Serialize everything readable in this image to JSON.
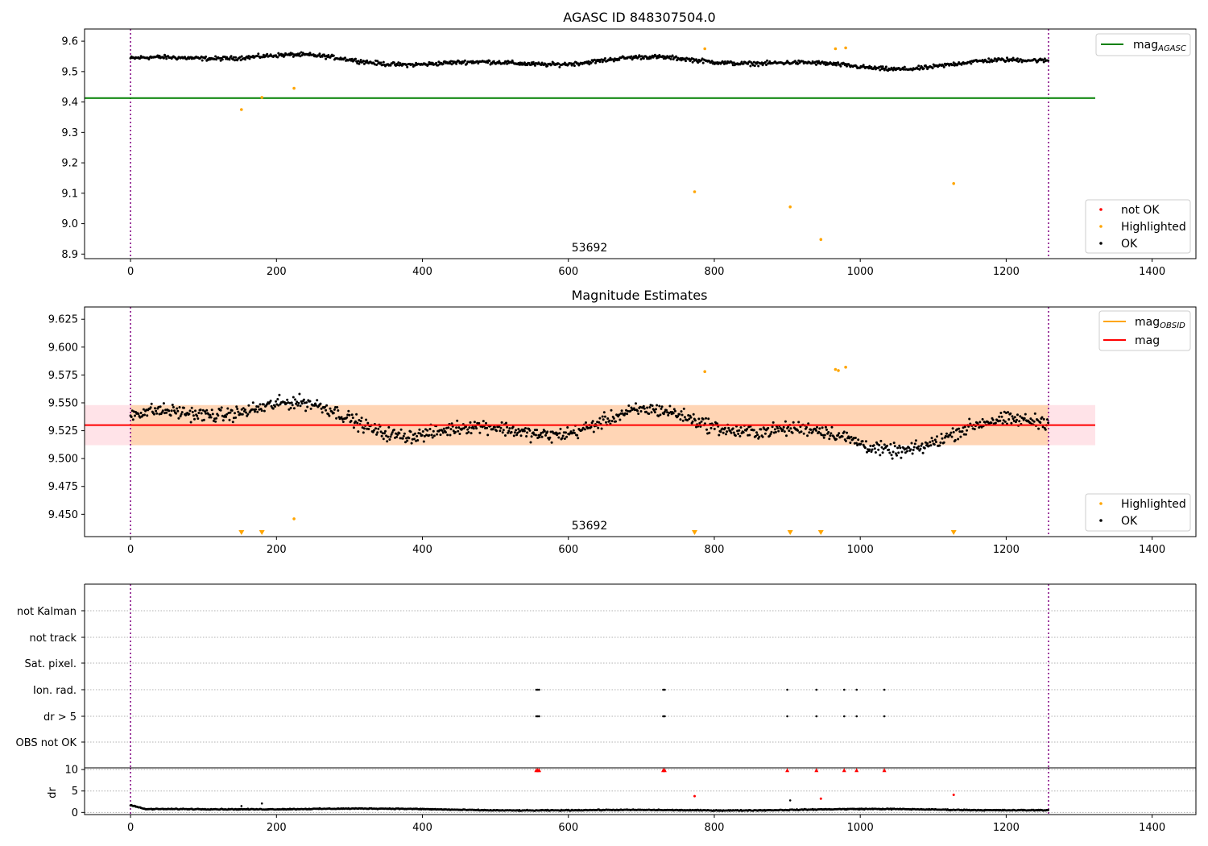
{
  "chart_data": [
    {
      "type": "scatter",
      "title": "AGASC ID 848307504.0",
      "xlim": [
        -63,
        1460
      ],
      "ylim": [
        8.885,
        9.64
      ],
      "x_ticks": [
        0,
        200,
        400,
        600,
        800,
        1000,
        1200,
        1400
      ],
      "y_ticks": [
        8.9,
        9.0,
        9.1,
        9.2,
        9.3,
        9.4,
        9.5,
        9.6
      ],
      "y_tick_labels": [
        "8.9",
        "9.0",
        "9.1",
        "9.2",
        "9.3",
        "9.4",
        "9.5",
        "9.6"
      ],
      "obs_boundaries": [
        0,
        1258
      ],
      "obs_label": {
        "text": "53692",
        "x": 629
      },
      "mag_agasc": {
        "value": 9.413,
        "x_range": [
          -63,
          1322
        ],
        "color": "#008000"
      },
      "ok_series": {
        "x_range": [
          0,
          1258
        ],
        "mean": 9.533,
        "amplitude": 0.025,
        "color": "#000000"
      },
      "highlighted": {
        "color": "#ffa500",
        "x": [
          152,
          180,
          224,
          773,
          787,
          904,
          946,
          966,
          980,
          1128
        ],
        "y": [
          9.375,
          9.415,
          9.445,
          9.105,
          9.575,
          9.055,
          8.948,
          9.575,
          9.578,
          9.132
        ]
      },
      "legend_upper": [
        {
          "label": "mag",
          "sub": "AGASC",
          "color": "#008000",
          "kind": "line"
        }
      ],
      "legend_lower": [
        {
          "label": "not OK",
          "color": "#ff0000",
          "kind": "marker"
        },
        {
          "label": "Highlighted",
          "color": "#ffa500",
          "kind": "marker"
        },
        {
          "label": "OK",
          "color": "#000000",
          "kind": "marker"
        }
      ]
    },
    {
      "type": "scatter",
      "title": "Magnitude Estimates",
      "xlim": [
        -63,
        1460
      ],
      "ylim": [
        9.43,
        9.636
      ],
      "x_ticks": [
        0,
        200,
        400,
        600,
        800,
        1000,
        1200,
        1400
      ],
      "y_ticks": [
        9.45,
        9.475,
        9.5,
        9.525,
        9.55,
        9.575,
        9.6,
        9.625
      ],
      "y_tick_labels": [
        "9.450",
        "9.475",
        "9.500",
        "9.525",
        "9.550",
        "9.575",
        "9.600",
        "9.625"
      ],
      "obs_boundaries": [
        0,
        1258
      ],
      "obs_label": {
        "text": "53692",
        "x": 629
      },
      "mag": {
        "value": 9.53,
        "x_range": [
          -63,
          1322
        ],
        "color": "#ff0000"
      },
      "mag_band": {
        "low": 9.512,
        "high": 9.548,
        "x_range": [
          -63,
          1322
        ],
        "color": "#ffc0cb"
      },
      "mag_obsid": {
        "value": 9.53,
        "low": 9.512,
        "high": 9.548,
        "x_range": [
          0,
          1258
        ],
        "color": "#ffa500"
      },
      "ok_series": {
        "x_range": [
          0,
          1258
        ],
        "mean": 9.53,
        "amplitude": 0.023,
        "color": "#000000"
      },
      "highlighted": {
        "color": "#ffa500",
        "x": [
          224,
          787,
          966,
          970,
          980
        ],
        "y": [
          9.446,
          9.578,
          9.58,
          9.579,
          9.582
        ]
      },
      "highlighted_offscale": {
        "x": [
          152,
          180,
          773,
          904,
          946,
          1128
        ]
      },
      "legend_upper": [
        {
          "label": "mag",
          "sub": "OBSID",
          "color": "#ffa500",
          "kind": "line"
        },
        {
          "label": "mag",
          "sub": "",
          "color": "#ff0000",
          "kind": "line"
        }
      ],
      "legend_lower": [
        {
          "label": "Highlighted",
          "color": "#ffa500",
          "kind": "marker"
        },
        {
          "label": "OK",
          "color": "#000000",
          "kind": "marker"
        }
      ]
    },
    {
      "type": "scatter",
      "title": "",
      "xlim": [
        -63,
        1460
      ],
      "flag_rows": [
        "not Kalman",
        "not track",
        "Sat. pixel.",
        "Ion. rad.",
        "dr > 5",
        "OBS not OK"
      ],
      "flag_points": {
        "Ion. rad.": [
          556,
          558,
          560,
          730,
          732,
          900,
          940,
          978,
          995,
          1033
        ],
        "dr > 5": [
          556,
          558,
          560,
          730,
          732,
          900,
          940,
          978,
          995,
          1033
        ]
      },
      "obs_boundaries": [
        0,
        1258
      ]
    },
    {
      "type": "scatter",
      "title": "",
      "xlim": [
        -63,
        1460
      ],
      "ylim": [
        -0.5,
        10.4
      ],
      "x_ticks": [
        0,
        200,
        400,
        600,
        800,
        1000,
        1200,
        1400
      ],
      "y_ticks": [
        0,
        5,
        10
      ],
      "y_tick_labels": [
        "0",
        "5",
        "10"
      ],
      "ylabel": "dr",
      "obs_boundaries": [
        0,
        1258
      ],
      "dr_series": {
        "x_range": [
          0,
          1258
        ],
        "mean": 0.6,
        "amplitude": 0.3,
        "color": "#000000"
      },
      "dr_extra": {
        "x": [
          152,
          180,
          904
        ],
        "y": [
          1.5,
          2.1,
          2.8
        ]
      },
      "dr_notok": {
        "color": "#ff0000",
        "x": [
          556,
          558,
          560,
          730,
          732,
          773,
          900,
          940,
          946,
          978,
          995,
          1033,
          1128
        ],
        "y": [
          9.8,
          9.8,
          9.8,
          9.8,
          9.8,
          3.8,
          9.8,
          9.8,
          3.2,
          9.8,
          9.8,
          9.8,
          4.1
        ]
      }
    }
  ]
}
